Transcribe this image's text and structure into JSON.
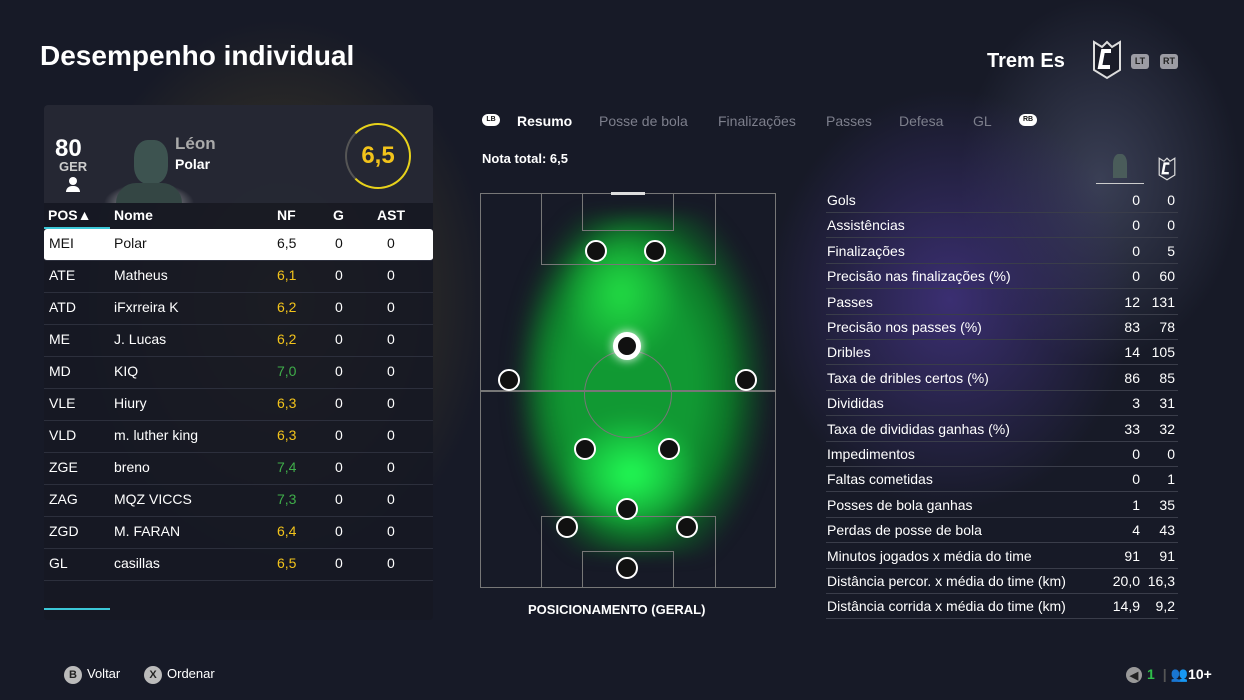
{
  "title": "Desempenho individual",
  "team": {
    "name": "Trem Es",
    "triggers": [
      "LT",
      "RT"
    ]
  },
  "player": {
    "overall": "80",
    "nation": "GER",
    "first_name": "Léon",
    "last_name": "Polar",
    "rating": "6,5",
    "rating_color": "#f2c31b"
  },
  "table": {
    "headers": [
      "POS▲",
      "Nome",
      "NF",
      "G",
      "AST"
    ],
    "rows": [
      [
        "MEI",
        "Polar",
        "6,5",
        "0",
        "0"
      ],
      [
        "ATE",
        "Matheus",
        "6,1",
        "0",
        "0"
      ],
      [
        "ATD",
        "iFxrreira K",
        "6,2",
        "0",
        "0"
      ],
      [
        "ME",
        "J. Lucas",
        "6,2",
        "0",
        "0"
      ],
      [
        "MD",
        "KIQ",
        "7,0",
        "0",
        "0"
      ],
      [
        "VLE",
        "Hiury",
        "6,3",
        "0",
        "0"
      ],
      [
        "VLD",
        "m. luther king",
        "6,3",
        "0",
        "0"
      ],
      [
        "ZGE",
        "breno",
        "7,4",
        "0",
        "0"
      ],
      [
        "ZAG",
        "MQZ VICCS",
        "7,3",
        "0",
        "0"
      ],
      [
        "ZGD",
        "M. FARAN",
        "6,4",
        "0",
        "0"
      ],
      [
        "GL",
        "casillas",
        "6,5",
        "0",
        "0"
      ]
    ]
  },
  "rating_colors": {
    "yellow": "#f2c31b",
    "green": "#3fae4a"
  },
  "tabs": {
    "lb": "LB",
    "rb": "RB",
    "items": [
      "Resumo",
      "Posse de bola",
      "Finalizações",
      "Passes",
      "Defesa",
      "GL"
    ],
    "active": 0
  },
  "total_label": "Nota total: 6,5",
  "pitch_caption": "POSICIONAMENTO (GERAL)",
  "stats": [
    [
      "Gols",
      "0",
      "0"
    ],
    [
      "Assistências",
      "0",
      "0"
    ],
    [
      "Finalizações",
      "0",
      "5"
    ],
    [
      "Precisão nas finalizações (%)",
      "0",
      "60"
    ],
    [
      "Passes",
      "12",
      "131"
    ],
    [
      "Precisão nos passes (%)",
      "83",
      "78"
    ],
    [
      "Dribles",
      "14",
      "105"
    ],
    [
      "Taxa de dribles certos (%)",
      "86",
      "85"
    ],
    [
      "Divididas",
      "3",
      "31"
    ],
    [
      "Taxa de divididas ganhas (%)",
      "33",
      "32"
    ],
    [
      "Impedimentos",
      "0",
      "0"
    ],
    [
      "Faltas cometidas",
      "0",
      "1"
    ],
    [
      "Posses de bola ganhas",
      "1",
      "35"
    ],
    [
      "Perdas de posse de bola",
      "4",
      "43"
    ],
    [
      "Minutos jogados x média do time",
      "91",
      "91"
    ],
    [
      "Distância percor. x média do time (km)",
      "20,0",
      "16,3"
    ],
    [
      "Distância corrida x média do time (km)",
      "14,9",
      "9,2"
    ]
  ],
  "footer": {
    "back_btn": "B",
    "back": "Voltar",
    "sort_btn": "X",
    "sort": "Ordenar",
    "count": "1",
    "players": "10+"
  }
}
